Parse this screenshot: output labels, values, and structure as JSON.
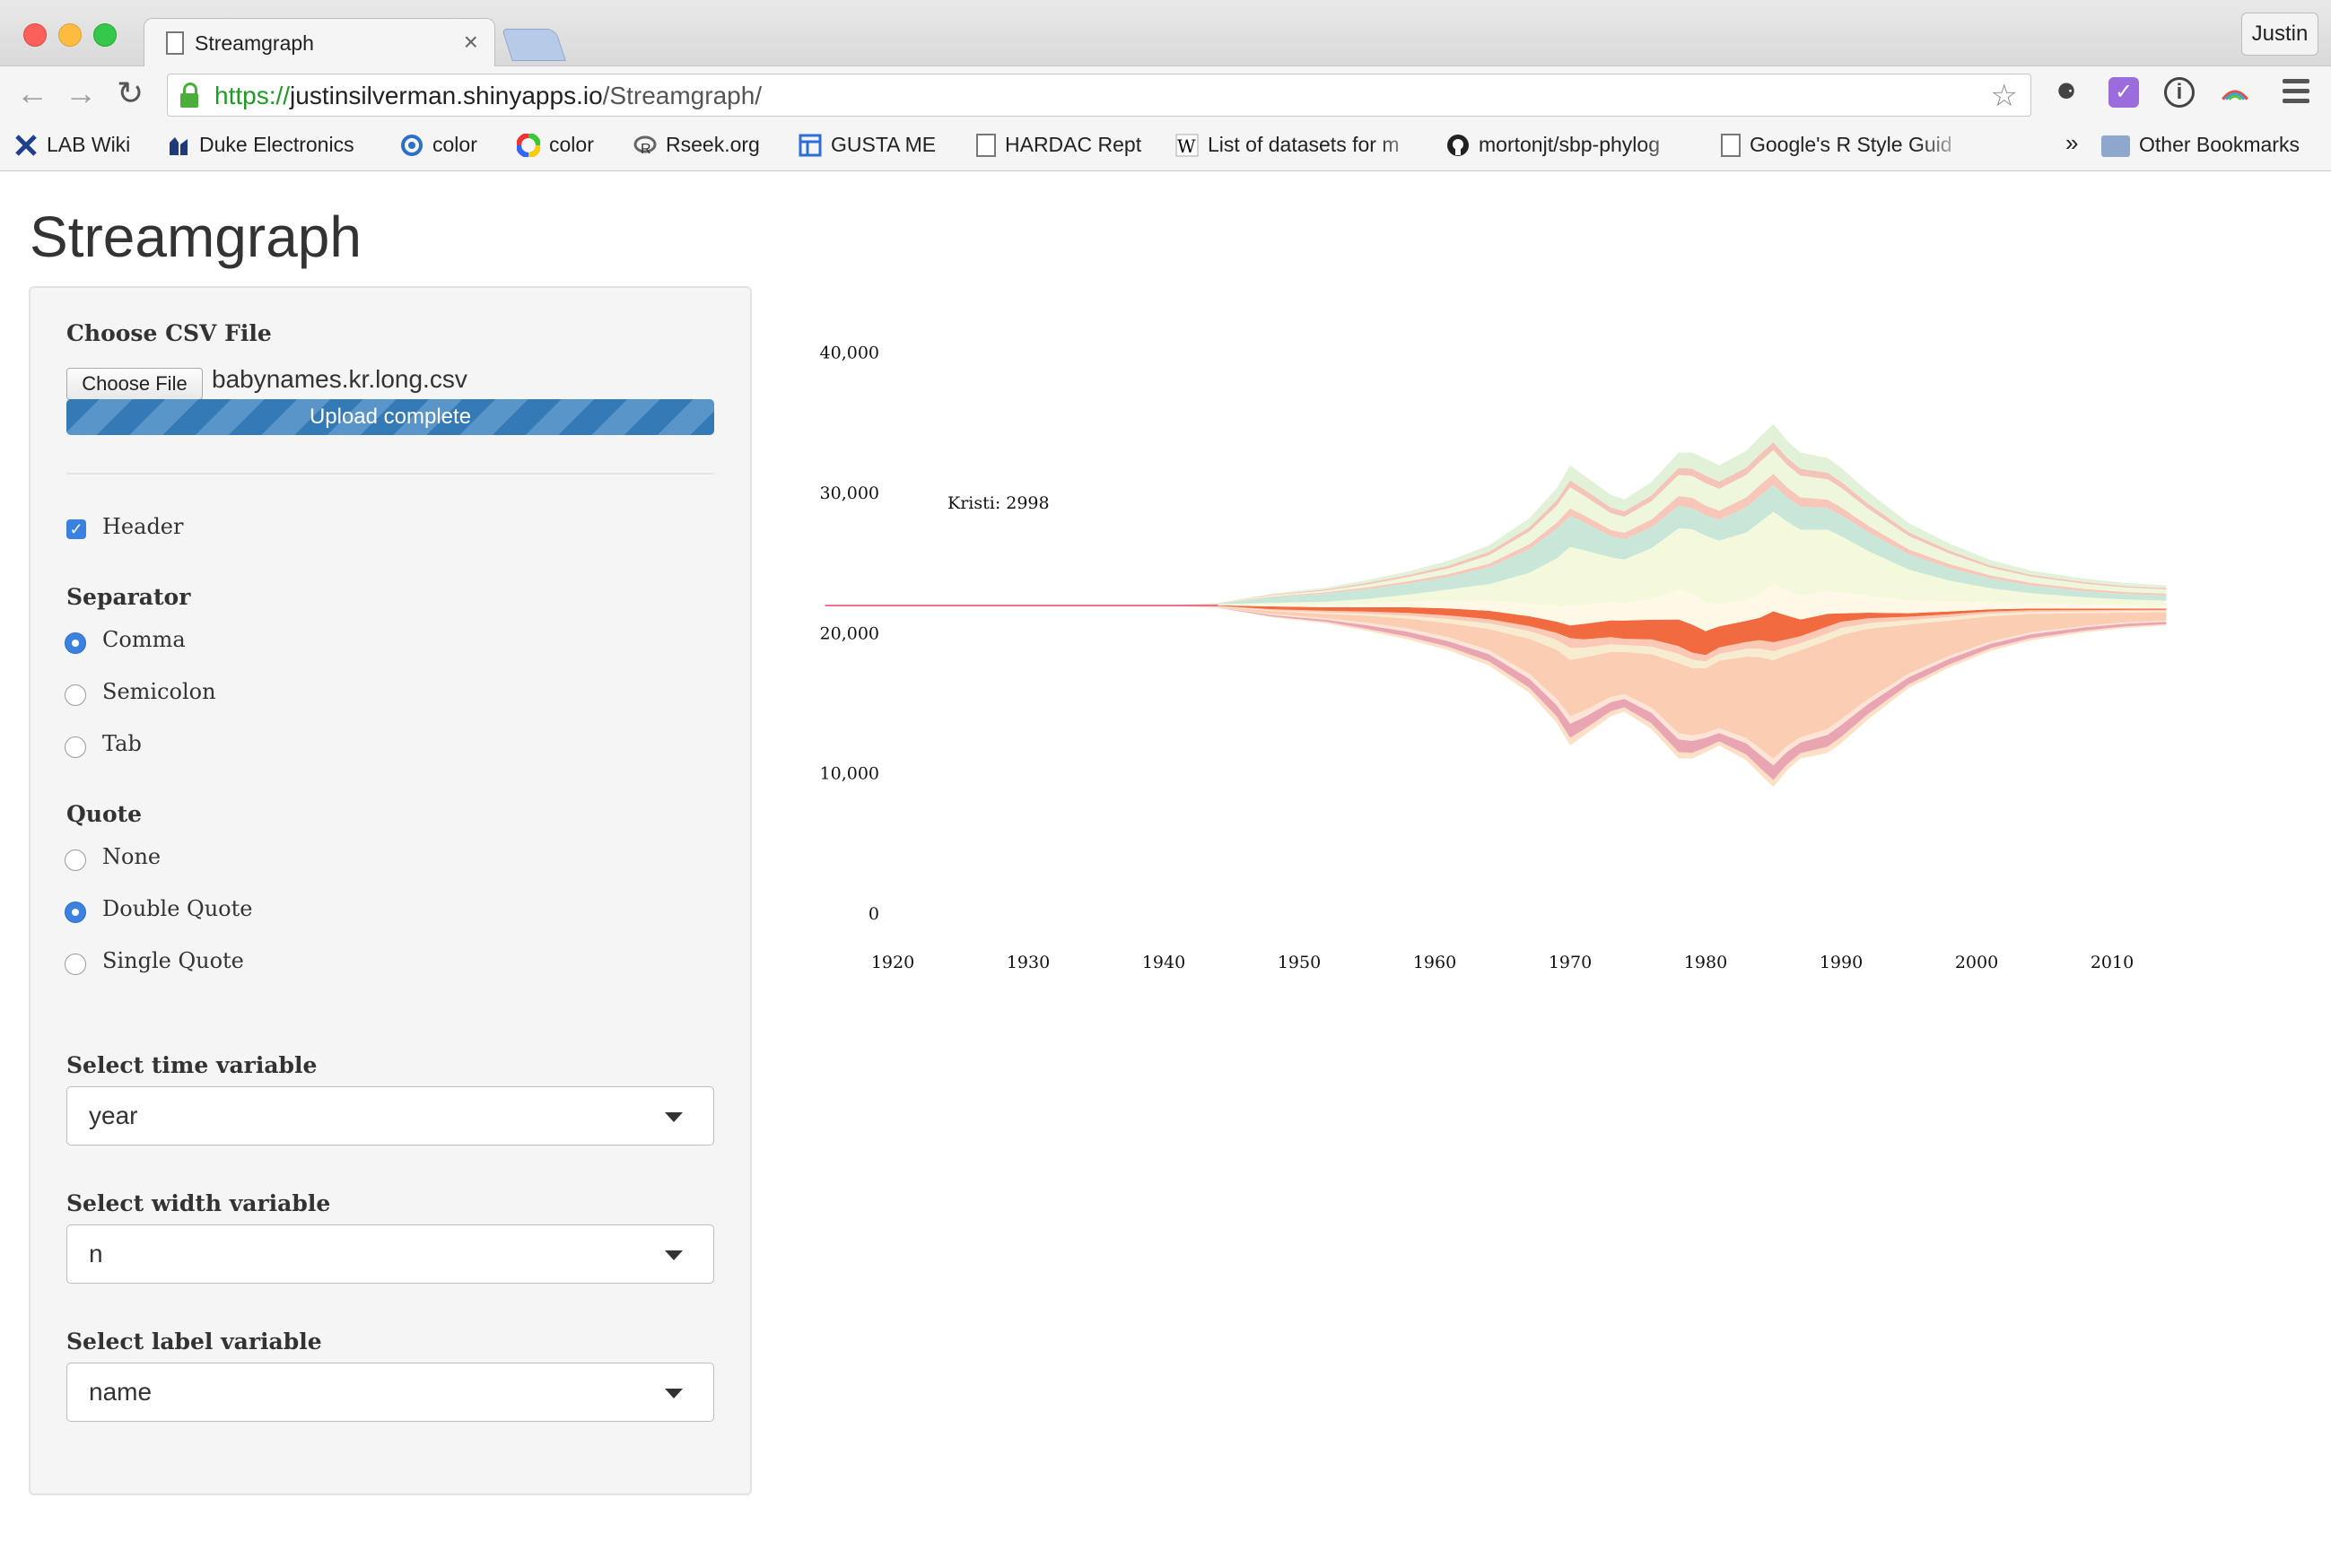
{
  "browser": {
    "tab_title": "Streamgraph",
    "tab_close": "×",
    "profile": "Justin",
    "url_scheme": "https://",
    "url_host": "justinsilverman.shinyapps.io",
    "url_path": "/Streamgraph/",
    "icons": [
      "back-icon",
      "forward-icon",
      "reload-icon",
      "lock-icon",
      "star-icon",
      "evernote-icon",
      "todoist-icon",
      "info-icon",
      "colorzilla-icon",
      "menu-icon"
    ],
    "bookmarks": [
      {
        "label": "LAB Wiki",
        "icon": "lab-wiki-icon"
      },
      {
        "label": "Duke Electronics",
        "icon": "duke-icon"
      },
      {
        "label": "color",
        "icon": "color-wheel-icon"
      },
      {
        "label": "color",
        "icon": "color-circle-icon"
      },
      {
        "label": "Rseek.org",
        "icon": "rseek-icon"
      },
      {
        "label": "GUSTA ME",
        "icon": "gusta-icon"
      },
      {
        "label": "HARDAC Rept",
        "icon": "page-icon"
      },
      {
        "label": "List of datasets for m",
        "icon": "wikipedia-icon"
      },
      {
        "label": "mortonjt/sbp-phylog",
        "icon": "github-icon"
      },
      {
        "label": "Google's R Style Guid",
        "icon": "page-icon"
      }
    ],
    "chevron": "»",
    "other_bookmarks": "Other Bookmarks"
  },
  "page": {
    "title": "Streamgraph"
  },
  "form": {
    "file_label": "Choose CSV File",
    "file_button": "Choose File",
    "file_name": "babynames.kr.long.csv",
    "upload_status": "Upload complete",
    "upload_progress": 1.0,
    "header_label": "Header",
    "header_checked": true,
    "separator_label": "Separator",
    "separator_options": [
      "Comma",
      "Semicolon",
      "Tab"
    ],
    "separator_selected": "Comma",
    "quote_label": "Quote",
    "quote_options": [
      "None",
      "Double Quote",
      "Single Quote"
    ],
    "quote_selected": "Double Quote",
    "time_label": "Select time variable",
    "time_value": "year",
    "width_label": "Select width variable",
    "width_value": "n",
    "label_label": "Select label variable",
    "label_value": "name"
  },
  "chart_data": {
    "type": "area",
    "subtype": "streamgraph",
    "tooltip": "Kristi: 2998",
    "y_ticks": [
      "0",
      "10,000",
      "20,000",
      "30,000",
      "40,000"
    ],
    "x_ticks": [
      "1920",
      "1930",
      "1940",
      "1950",
      "1960",
      "1970",
      "1980",
      "1990",
      "2000",
      "2010"
    ],
    "xlim": [
      1915,
      2014
    ],
    "ylim": [
      0,
      44000
    ],
    "baseline": 22000,
    "x": [
      1915,
      1940,
      1944,
      1948,
      1952,
      1955,
      1958,
      1961,
      1964,
      1967,
      1969,
      1970,
      1971,
      1973,
      1974,
      1976,
      1978,
      1979,
      1980,
      1981,
      1983,
      1984,
      1985,
      1986,
      1987,
      1989,
      1990,
      1992,
      1995,
      1998,
      2001,
      2004,
      2008,
      2011,
      2014
    ],
    "colors": [
      "#fde0c5",
      "#eaa5b3",
      "#fce4d6",
      "#fbcdb2",
      "#f7ecd0",
      "#fac8b5",
      "#f26a40",
      "#fef9e7",
      "#f5f9dc",
      "#c9e7d9",
      "#f7c7b9",
      "#eef7dc",
      "#f4c4b8",
      "#e1f2d8"
    ],
    "series": [
      {
        "values": [
          0,
          0,
          20,
          60,
          100,
          150,
          200,
          250,
          300,
          350,
          450,
          550,
          450,
          350,
          300,
          400,
          450,
          400,
          330,
          300,
          400,
          450,
          500,
          420,
          380,
          450,
          450,
          380,
          260,
          220,
          180,
          160,
          130,
          110,
          100
        ]
      },
      {
        "values": [
          0,
          0,
          20,
          100,
          150,
          250,
          350,
          400,
          500,
          650,
          800,
          1000,
          850,
          650,
          600,
          750,
          900,
          850,
          700,
          600,
          800,
          950,
          1050,
          900,
          750,
          850,
          850,
          700,
          500,
          400,
          320,
          280,
          230,
          200,
          180
        ]
      },
      {
        "values": [
          0,
          0,
          20,
          80,
          120,
          180,
          240,
          280,
          300,
          360,
          450,
          550,
          480,
          380,
          340,
          380,
          450,
          400,
          350,
          350,
          380,
          450,
          480,
          420,
          380,
          420,
          420,
          360,
          260,
          220,
          170,
          140,
          110,
          90,
          80
        ]
      },
      {
        "values": [
          0,
          0,
          40,
          200,
          300,
          500,
          700,
          1000,
          1500,
          2500,
          3500,
          4000,
          3800,
          3200,
          3000,
          3800,
          5000,
          4800,
          4600,
          4800,
          5800,
          6500,
          7000,
          6500,
          6200,
          6300,
          6000,
          5000,
          3500,
          2500,
          1800,
          1300,
          900,
          700,
          600
        ]
      },
      {
        "values": [
          0,
          0,
          20,
          60,
          100,
          150,
          200,
          300,
          400,
          550,
          700,
          850,
          700,
          550,
          500,
          550,
          650,
          600,
          500,
          500,
          550,
          600,
          650,
          550,
          500,
          500,
          500,
          400,
          300,
          250,
          200,
          150,
          120,
          100,
          90
        ]
      },
      {
        "values": [
          0,
          0,
          20,
          80,
          120,
          150,
          200,
          250,
          300,
          350,
          500,
          700,
          600,
          500,
          450,
          500,
          550,
          500,
          450,
          450,
          500,
          600,
          650,
          550,
          500,
          500,
          450,
          350,
          250,
          200,
          150,
          120,
          100,
          90,
          80
        ]
      },
      {
        "values": [
          0,
          0,
          50,
          200,
          250,
          300,
          400,
          500,
          600,
          700,
          800,
          900,
          1100,
          1200,
          1300,
          1400,
          1900,
          2000,
          1700,
          1500,
          1500,
          1600,
          2200,
          1700,
          1200,
          900,
          600,
          400,
          250,
          200,
          150,
          120,
          100,
          90,
          80
        ]
      },
      {
        "values": [
          0,
          0,
          20,
          100,
          150,
          250,
          400,
          550,
          700,
          900,
          1100,
          1400,
          1350,
          1300,
          1250,
          1500,
          2100,
          2200,
          2000,
          1600,
          1500,
          1700,
          1900,
          1800,
          1700,
          1600,
          1500,
          1200,
          900,
          700,
          500,
          400,
          300,
          250,
          220
        ]
      },
      {
        "values": [
          0,
          0,
          40,
          150,
          250,
          350,
          500,
          800,
          1200,
          2200,
          3400,
          4200,
          3900,
          3200,
          3100,
          3600,
          4400,
          4600,
          4800,
          4500,
          4800,
          5100,
          5200,
          4900,
          4700,
          4400,
          4000,
          3200,
          2200,
          1500,
          1000,
          700,
          500,
          400,
          350
        ]
      },
      {
        "values": [
          0,
          0,
          60,
          400,
          600,
          700,
          800,
          900,
          1200,
          1700,
          2100,
          2200,
          2000,
          1500,
          1450,
          1500,
          1600,
          1500,
          1450,
          1500,
          1800,
          1900,
          1900,
          1750,
          1650,
          1550,
          1500,
          1350,
          1100,
          900,
          700,
          550,
          450,
          400,
          380
        ]
      },
      {
        "values": [
          0,
          0,
          10,
          50,
          80,
          120,
          150,
          200,
          250,
          350,
          450,
          550,
          500,
          450,
          450,
          550,
          700,
          750,
          700,
          650,
          700,
          750,
          800,
          700,
          650,
          600,
          550,
          450,
          350,
          280,
          220,
          180,
          150,
          130,
          120
        ]
      },
      {
        "values": [
          0,
          0,
          10,
          80,
          120,
          200,
          300,
          400,
          600,
          900,
          1200,
          1500,
          1400,
          1200,
          1150,
          1300,
          1500,
          1550,
          1600,
          1550,
          1600,
          1650,
          1700,
          1600,
          1550,
          1450,
          1400,
          1200,
          950,
          750,
          550,
          450,
          380,
          330,
          300
        ]
      },
      {
        "values": [
          0,
          0,
          10,
          50,
          80,
          120,
          150,
          200,
          250,
          300,
          400,
          500,
          450,
          400,
          380,
          420,
          500,
          520,
          540,
          520,
          520,
          540,
          560,
          520,
          500,
          460,
          430,
          360,
          270,
          210,
          160,
          130,
          110,
          95,
          90
        ]
      },
      {
        "values": [
          0,
          0,
          10,
          80,
          120,
          200,
          250,
          350,
          450,
          650,
          850,
          1050,
          1000,
          900,
          850,
          950,
          1100,
          1150,
          1200,
          1150,
          1200,
          1250,
          1300,
          1200,
          1150,
          1050,
          1000,
          850,
          650,
          500,
          380,
          300,
          250,
          220,
          200
        ]
      }
    ]
  }
}
